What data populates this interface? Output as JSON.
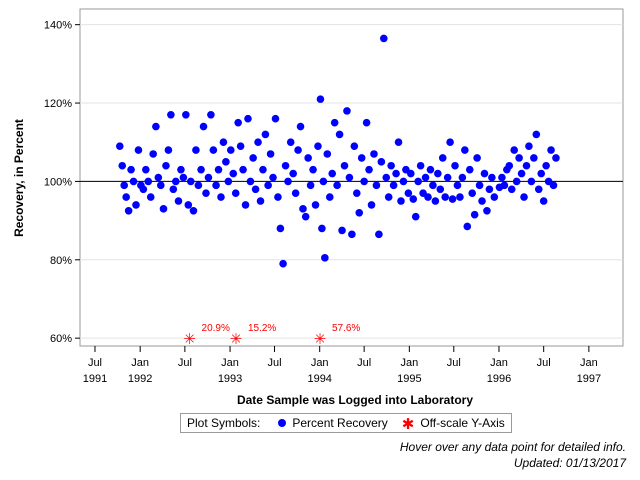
{
  "chart_data": {
    "type": "scatter",
    "ylabel": "Recovery, in Percent",
    "xlabel": "Date Sample was Logged into Laboratory",
    "ylim": [
      58,
      144
    ],
    "xlim": [
      "1991-05-01",
      "1997-05-20"
    ],
    "reference_line_y": 100,
    "grid": true,
    "y_ticks": [
      {
        "value": 60,
        "label": "60%"
      },
      {
        "value": 80,
        "label": "80%"
      },
      {
        "value": 100,
        "label": "100%"
      },
      {
        "value": 120,
        "label": "120%"
      },
      {
        "value": 140,
        "label": "140%"
      }
    ],
    "x_ticks": [
      {
        "date": "1991-07-01",
        "label": "Jul",
        "year": "1991"
      },
      {
        "date": "1992-01-01",
        "label": "Jan",
        "year": "1992"
      },
      {
        "date": "1992-07-01",
        "label": "Jul",
        "year": ""
      },
      {
        "date": "1993-01-01",
        "label": "Jan",
        "year": "1993"
      },
      {
        "date": "1993-07-01",
        "label": "Jul",
        "year": ""
      },
      {
        "date": "1994-01-01",
        "label": "Jan",
        "year": "1994"
      },
      {
        "date": "1994-07-01",
        "label": "Jul",
        "year": ""
      },
      {
        "date": "1995-01-01",
        "label": "Jan",
        "year": "1995"
      },
      {
        "date": "1995-07-01",
        "label": "Jul",
        "year": ""
      },
      {
        "date": "1996-01-01",
        "label": "Jan",
        "year": "1996"
      },
      {
        "date": "1996-07-01",
        "label": "Jul",
        "year": ""
      },
      {
        "date": "1997-01-01",
        "label": "Jan",
        "year": "1997"
      }
    ],
    "series": [
      {
        "name": "Percent Recovery",
        "marker": "circle",
        "color": "#0000ff",
        "points": [
          {
            "x": "1991-10-10",
            "y": 109
          },
          {
            "x": "1991-10-20",
            "y": 104
          },
          {
            "x": "1991-10-28",
            "y": 99
          },
          {
            "x": "1991-11-05",
            "y": 96
          },
          {
            "x": "1991-11-15",
            "y": 92.5
          },
          {
            "x": "1991-11-25",
            "y": 103
          },
          {
            "x": "1991-12-05",
            "y": 100
          },
          {
            "x": "1991-12-15",
            "y": 94
          },
          {
            "x": "1991-12-25",
            "y": 108
          },
          {
            "x": "1992-01-04",
            "y": 99
          },
          {
            "x": "1992-01-14",
            "y": 98
          },
          {
            "x": "1992-01-24",
            "y": 103
          },
          {
            "x": "1992-02-03",
            "y": 100
          },
          {
            "x": "1992-02-13",
            "y": 96
          },
          {
            "x": "1992-02-23",
            "y": 107
          },
          {
            "x": "1992-03-05",
            "y": 114
          },
          {
            "x": "1992-03-15",
            "y": 101
          },
          {
            "x": "1992-03-25",
            "y": 99
          },
          {
            "x": "1992-04-05",
            "y": 93
          },
          {
            "x": "1992-04-15",
            "y": 104
          },
          {
            "x": "1992-04-25",
            "y": 108
          },
          {
            "x": "1992-05-05",
            "y": 117
          },
          {
            "x": "1992-05-15",
            "y": 98
          },
          {
            "x": "1992-05-25",
            "y": 100
          },
          {
            "x": "1992-06-05",
            "y": 95
          },
          {
            "x": "1992-06-15",
            "y": 103
          },
          {
            "x": "1992-06-25",
            "y": 101
          },
          {
            "x": "1992-07-05",
            "y": 117
          },
          {
            "x": "1992-07-15",
            "y": 94
          },
          {
            "x": "1992-07-25",
            "y": 100
          },
          {
            "x": "1992-08-05",
            "y": 92.5
          },
          {
            "x": "1992-08-15",
            "y": 108
          },
          {
            "x": "1992-08-25",
            "y": 99
          },
          {
            "x": "1992-09-05",
            "y": 103
          },
          {
            "x": "1992-09-15",
            "y": 114
          },
          {
            "x": "1992-09-25",
            "y": 97
          },
          {
            "x": "1992-10-05",
            "y": 101
          },
          {
            "x": "1992-10-15",
            "y": 117
          },
          {
            "x": "1992-10-25",
            "y": 108
          },
          {
            "x": "1992-11-05",
            "y": 99
          },
          {
            "x": "1992-11-15",
            "y": 103
          },
          {
            "x": "1992-11-25",
            "y": 96
          },
          {
            "x": "1992-12-05",
            "y": 110
          },
          {
            "x": "1992-12-15",
            "y": 105
          },
          {
            "x": "1992-12-25",
            "y": 100
          },
          {
            "x": "1993-01-04",
            "y": 108
          },
          {
            "x": "1993-01-14",
            "y": 102
          },
          {
            "x": "1993-01-24",
            "y": 97
          },
          {
            "x": "1993-02-03",
            "y": 115
          },
          {
            "x": "1993-02-13",
            "y": 109
          },
          {
            "x": "1993-02-23",
            "y": 103
          },
          {
            "x": "1993-03-05",
            "y": 94
          },
          {
            "x": "1993-03-15",
            "y": 116
          },
          {
            "x": "1993-03-25",
            "y": 100
          },
          {
            "x": "1993-04-05",
            "y": 106
          },
          {
            "x": "1993-04-15",
            "y": 98
          },
          {
            "x": "1993-04-25",
            "y": 110
          },
          {
            "x": "1993-05-05",
            "y": 95
          },
          {
            "x": "1993-05-15",
            "y": 103
          },
          {
            "x": "1993-05-25",
            "y": 112
          },
          {
            "x": "1993-06-05",
            "y": 99
          },
          {
            "x": "1993-06-15",
            "y": 107
          },
          {
            "x": "1993-06-25",
            "y": 101
          },
          {
            "x": "1993-07-05",
            "y": 116
          },
          {
            "x": "1993-07-15",
            "y": 96
          },
          {
            "x": "1993-07-25",
            "y": 88
          },
          {
            "x": "1993-08-05",
            "y": 79
          },
          {
            "x": "1993-08-15",
            "y": 104
          },
          {
            "x": "1993-08-25",
            "y": 100
          },
          {
            "x": "1993-09-05",
            "y": 110
          },
          {
            "x": "1993-09-15",
            "y": 102
          },
          {
            "x": "1993-09-25",
            "y": 97
          },
          {
            "x": "1993-10-05",
            "y": 108
          },
          {
            "x": "1993-10-15",
            "y": 114
          },
          {
            "x": "1993-10-25",
            "y": 93
          },
          {
            "x": "1993-11-05",
            "y": 91
          },
          {
            "x": "1993-11-15",
            "y": 106
          },
          {
            "x": "1993-11-25",
            "y": 99
          },
          {
            "x": "1993-12-05",
            "y": 103
          },
          {
            "x": "1993-12-15",
            "y": 94
          },
          {
            "x": "1993-12-25",
            "y": 109
          },
          {
            "x": "1994-01-04",
            "y": 121
          },
          {
            "x": "1994-01-10",
            "y": 88
          },
          {
            "x": "1994-01-16",
            "y": 100
          },
          {
            "x": "1994-01-22",
            "y": 80.5
          },
          {
            "x": "1994-02-01",
            "y": 107
          },
          {
            "x": "1994-02-11",
            "y": 96
          },
          {
            "x": "1994-02-21",
            "y": 102
          },
          {
            "x": "1994-03-03",
            "y": 115
          },
          {
            "x": "1994-03-13",
            "y": 99
          },
          {
            "x": "1994-03-23",
            "y": 112
          },
          {
            "x": "1994-04-02",
            "y": 87.5
          },
          {
            "x": "1994-04-12",
            "y": 104
          },
          {
            "x": "1994-04-22",
            "y": 118
          },
          {
            "x": "1994-05-02",
            "y": 101
          },
          {
            "x": "1994-05-12",
            "y": 86.5
          },
          {
            "x": "1994-05-22",
            "y": 109
          },
          {
            "x": "1994-06-01",
            "y": 97
          },
          {
            "x": "1994-06-11",
            "y": 92
          },
          {
            "x": "1994-06-21",
            "y": 106
          },
          {
            "x": "1994-07-01",
            "y": 100
          },
          {
            "x": "1994-07-11",
            "y": 115
          },
          {
            "x": "1994-07-21",
            "y": 103
          },
          {
            "x": "1994-07-31",
            "y": 94
          },
          {
            "x": "1994-08-10",
            "y": 107
          },
          {
            "x": "1994-08-20",
            "y": 99
          },
          {
            "x": "1994-08-30",
            "y": 86.5
          },
          {
            "x": "1994-09-09",
            "y": 105
          },
          {
            "x": "1994-09-19",
            "y": 136.5
          },
          {
            "x": "1994-09-29",
            "y": 101
          },
          {
            "x": "1994-10-09",
            "y": 96
          },
          {
            "x": "1994-10-19",
            "y": 104
          },
          {
            "x": "1994-10-29",
            "y": 99
          },
          {
            "x": "1994-11-08",
            "y": 102
          },
          {
            "x": "1994-11-18",
            "y": 110
          },
          {
            "x": "1994-11-28",
            "y": 95
          },
          {
            "x": "1994-12-08",
            "y": 100
          },
          {
            "x": "1994-12-18",
            "y": 103
          },
          {
            "x": "1994-12-28",
            "y": 97
          },
          {
            "x": "1995-01-07",
            "y": 102
          },
          {
            "x": "1995-01-17",
            "y": 95.5
          },
          {
            "x": "1995-01-27",
            "y": 91
          },
          {
            "x": "1995-02-06",
            "y": 100
          },
          {
            "x": "1995-02-16",
            "y": 104
          },
          {
            "x": "1995-02-26",
            "y": 97
          },
          {
            "x": "1995-03-08",
            "y": 101
          },
          {
            "x": "1995-03-18",
            "y": 96
          },
          {
            "x": "1995-03-28",
            "y": 103
          },
          {
            "x": "1995-04-07",
            "y": 99
          },
          {
            "x": "1995-04-17",
            "y": 95
          },
          {
            "x": "1995-04-27",
            "y": 102
          },
          {
            "x": "1995-05-07",
            "y": 98
          },
          {
            "x": "1995-05-17",
            "y": 106
          },
          {
            "x": "1995-05-27",
            "y": 96
          },
          {
            "x": "1995-06-06",
            "y": 101
          },
          {
            "x": "1995-06-16",
            "y": 110
          },
          {
            "x": "1995-06-26",
            "y": 95.5
          },
          {
            "x": "1995-07-06",
            "y": 104
          },
          {
            "x": "1995-07-16",
            "y": 99
          },
          {
            "x": "1995-07-26",
            "y": 96
          },
          {
            "x": "1995-08-05",
            "y": 101
          },
          {
            "x": "1995-08-15",
            "y": 108
          },
          {
            "x": "1995-08-25",
            "y": 88.5
          },
          {
            "x": "1995-09-04",
            "y": 103
          },
          {
            "x": "1995-09-14",
            "y": 97
          },
          {
            "x": "1995-09-24",
            "y": 91.5
          },
          {
            "x": "1995-10-04",
            "y": 106
          },
          {
            "x": "1995-10-14",
            "y": 99
          },
          {
            "x": "1995-10-24",
            "y": 95
          },
          {
            "x": "1995-11-03",
            "y": 102
          },
          {
            "x": "1995-11-13",
            "y": 92.5
          },
          {
            "x": "1995-11-23",
            "y": 98
          },
          {
            "x": "1995-12-03",
            "y": 101
          },
          {
            "x": "1995-12-13",
            "y": 96
          },
          {
            "x": "1996-01-03",
            "y": 98.5
          },
          {
            "x": "1996-01-13",
            "y": 101
          },
          {
            "x": "1996-01-23",
            "y": 99
          },
          {
            "x": "1996-02-02",
            "y": 103
          },
          {
            "x": "1996-02-12",
            "y": 104
          },
          {
            "x": "1996-02-22",
            "y": 98
          },
          {
            "x": "1996-03-03",
            "y": 108
          },
          {
            "x": "1996-03-13",
            "y": 100
          },
          {
            "x": "1996-03-23",
            "y": 106
          },
          {
            "x": "1996-04-02",
            "y": 102
          },
          {
            "x": "1996-04-12",
            "y": 96
          },
          {
            "x": "1996-04-22",
            "y": 104
          },
          {
            "x": "1996-05-02",
            "y": 109
          },
          {
            "x": "1996-05-12",
            "y": 100
          },
          {
            "x": "1996-05-22",
            "y": 106
          },
          {
            "x": "1996-06-01",
            "y": 112
          },
          {
            "x": "1996-06-11",
            "y": 98
          },
          {
            "x": "1996-06-21",
            "y": 102
          },
          {
            "x": "1996-07-01",
            "y": 95
          },
          {
            "x": "1996-07-11",
            "y": 104
          },
          {
            "x": "1996-07-21",
            "y": 100
          },
          {
            "x": "1996-07-31",
            "y": 108
          },
          {
            "x": "1996-08-10",
            "y": 99
          },
          {
            "x": "1996-08-20",
            "y": 106
          }
        ]
      },
      {
        "name": "Off-scale Y-Axis",
        "marker": "star",
        "color": "#ff0000",
        "points": [
          {
            "x": "1992-07-20",
            "y": 60,
            "label": "20.9%"
          },
          {
            "x": "1993-01-25",
            "y": 60,
            "label": "15.2%"
          },
          {
            "x": "1994-01-02",
            "y": 60,
            "label": "57.6%"
          }
        ]
      }
    ]
  },
  "legend": {
    "title": "Plot Symbols:",
    "items": [
      "Percent Recovery",
      "Off-scale Y-Axis"
    ],
    "dot_color": "#0000ff",
    "star_color": "#ff0000"
  },
  "footnotes": {
    "hover": "Hover over any data point for detailed info.",
    "updated": "Updated: 01/13/2017"
  }
}
